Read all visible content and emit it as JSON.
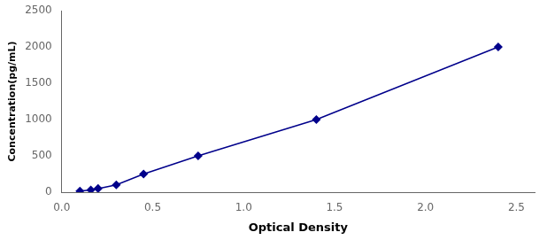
{
  "chart_data": {
    "type": "line",
    "x": [
      0.1,
      0.16,
      0.2,
      0.3,
      0.45,
      0.75,
      1.4,
      2.4
    ],
    "values": [
      15,
      31,
      50,
      100,
      250,
      500,
      1000,
      2000
    ],
    "color": "#00008B",
    "marker": "diamond",
    "line_style": "solid",
    "xlabel": "Optical Density",
    "ylabel": "Concentration(pg/mL)",
    "xlim": [
      0.0,
      2.6
    ],
    "ylim": [
      0,
      2500
    ],
    "xticks": [
      {
        "value": 0,
        "label": "0.0"
      },
      0.5,
      {
        "value": 1,
        "label": "1.0"
      },
      1.5,
      {
        "value": 2,
        "label": "2.0"
      },
      2.5
    ],
    "yticks": [
      0,
      500,
      1000,
      1500,
      2000,
      2500
    ],
    "grid": false
  }
}
